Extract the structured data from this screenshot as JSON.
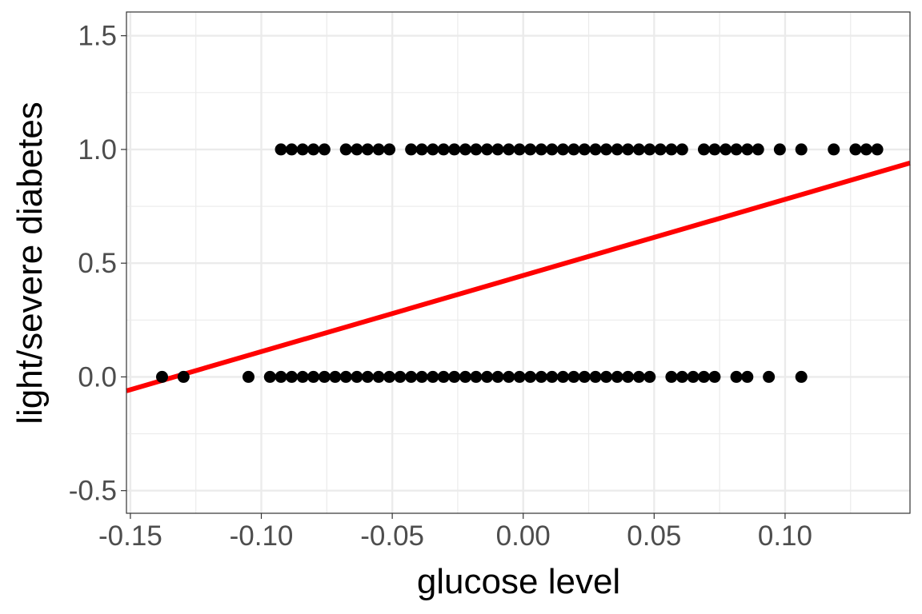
{
  "chart_data": {
    "type": "scatter",
    "title": "",
    "xlabel": "glucose level",
    "ylabel": "light/severe diabetes",
    "xlim": [
      -0.1515,
      0.1477
    ],
    "ylim": [
      -0.5995,
      1.6043
    ],
    "x_ticks": [
      -0.15,
      -0.1,
      -0.05,
      0.0,
      0.05,
      0.1
    ],
    "x_tick_labels": [
      "-0.15",
      "-0.10",
      "-0.05",
      "0.00",
      "0.05",
      "0.10"
    ],
    "y_ticks": [
      -0.5,
      0.0,
      0.5,
      1.0,
      1.5
    ],
    "y_tick_labels": [
      "-0.5",
      "0.0",
      "0.5",
      "1.0",
      "1.5"
    ],
    "grid": true,
    "theme": "bw",
    "series": [
      {
        "kind": "points",
        "color": "#000000",
        "points": [
          [
            -0.1379,
            0
          ],
          [
            -0.1297,
            0
          ],
          [
            -0.1049,
            0
          ],
          [
            -0.0967,
            0
          ],
          [
            -0.0925,
            0
          ],
          [
            -0.0884,
            0
          ],
          [
            -0.0842,
            0
          ],
          [
            -0.0801,
            0
          ],
          [
            -0.0759,
            0
          ],
          [
            -0.0718,
            0
          ],
          [
            -0.0677,
            0
          ],
          [
            -0.0635,
            0
          ],
          [
            -0.0594,
            0
          ],
          [
            -0.0552,
            0
          ],
          [
            -0.0511,
            0
          ],
          [
            -0.047,
            0
          ],
          [
            -0.0428,
            0
          ],
          [
            -0.0387,
            0
          ],
          [
            -0.0345,
            0
          ],
          [
            -0.0304,
            0
          ],
          [
            -0.0263,
            0
          ],
          [
            -0.0221,
            0
          ],
          [
            -0.018,
            0
          ],
          [
            -0.0138,
            0
          ],
          [
            -0.0097,
            0
          ],
          [
            -0.0055,
            0
          ],
          [
            -0.0014,
            0
          ],
          [
            0.0027,
            0
          ],
          [
            0.0069,
            0
          ],
          [
            0.011,
            0
          ],
          [
            0.0152,
            0
          ],
          [
            0.0193,
            0
          ],
          [
            0.0234,
            0
          ],
          [
            0.0276,
            0
          ],
          [
            0.0317,
            0
          ],
          [
            0.0359,
            0
          ],
          [
            0.04,
            0
          ],
          [
            0.0442,
            0
          ],
          [
            0.0483,
            0
          ],
          [
            0.0566,
            0
          ],
          [
            0.0607,
            0
          ],
          [
            0.0649,
            0
          ],
          [
            0.069,
            0
          ],
          [
            0.0731,
            0
          ],
          [
            0.0814,
            0
          ],
          [
            0.0856,
            0
          ],
          [
            0.0938,
            0
          ],
          [
            0.1062,
            0
          ],
          [
            -0.0925,
            1
          ],
          [
            -0.0884,
            1
          ],
          [
            -0.0842,
            1
          ],
          [
            -0.0801,
            1
          ],
          [
            -0.0759,
            1
          ],
          [
            -0.0677,
            1
          ],
          [
            -0.0635,
            1
          ],
          [
            -0.0594,
            1
          ],
          [
            -0.0552,
            1
          ],
          [
            -0.0511,
            1
          ],
          [
            -0.0428,
            1
          ],
          [
            -0.0387,
            1
          ],
          [
            -0.0345,
            1
          ],
          [
            -0.0304,
            1
          ],
          [
            -0.0263,
            1
          ],
          [
            -0.0221,
            1
          ],
          [
            -0.018,
            1
          ],
          [
            -0.0138,
            1
          ],
          [
            -0.0097,
            1
          ],
          [
            -0.0055,
            1
          ],
          [
            -0.0014,
            1
          ],
          [
            0.0027,
            1
          ],
          [
            0.0069,
            1
          ],
          [
            0.011,
            1
          ],
          [
            0.0152,
            1
          ],
          [
            0.0193,
            1
          ],
          [
            0.0234,
            1
          ],
          [
            0.0276,
            1
          ],
          [
            0.0317,
            1
          ],
          [
            0.0359,
            1
          ],
          [
            0.04,
            1
          ],
          [
            0.0442,
            1
          ],
          [
            0.0483,
            1
          ],
          [
            0.0524,
            1
          ],
          [
            0.0566,
            1
          ],
          [
            0.0607,
            1
          ],
          [
            0.069,
            1
          ],
          [
            0.0731,
            1
          ],
          [
            0.0773,
            1
          ],
          [
            0.0814,
            1
          ],
          [
            0.0856,
            1
          ],
          [
            0.0897,
            1
          ],
          [
            0.098,
            1
          ],
          [
            0.1062,
            1
          ],
          [
            0.1186,
            1
          ],
          [
            0.1269,
            1
          ],
          [
            0.131,
            1
          ],
          [
            0.1352,
            1
          ]
        ]
      },
      {
        "kind": "fit_line",
        "color": "#ff0000",
        "endpoints": [
          [
            -0.1515,
            -0.0612
          ],
          [
            0.1477,
            0.9403
          ]
        ]
      }
    ]
  }
}
